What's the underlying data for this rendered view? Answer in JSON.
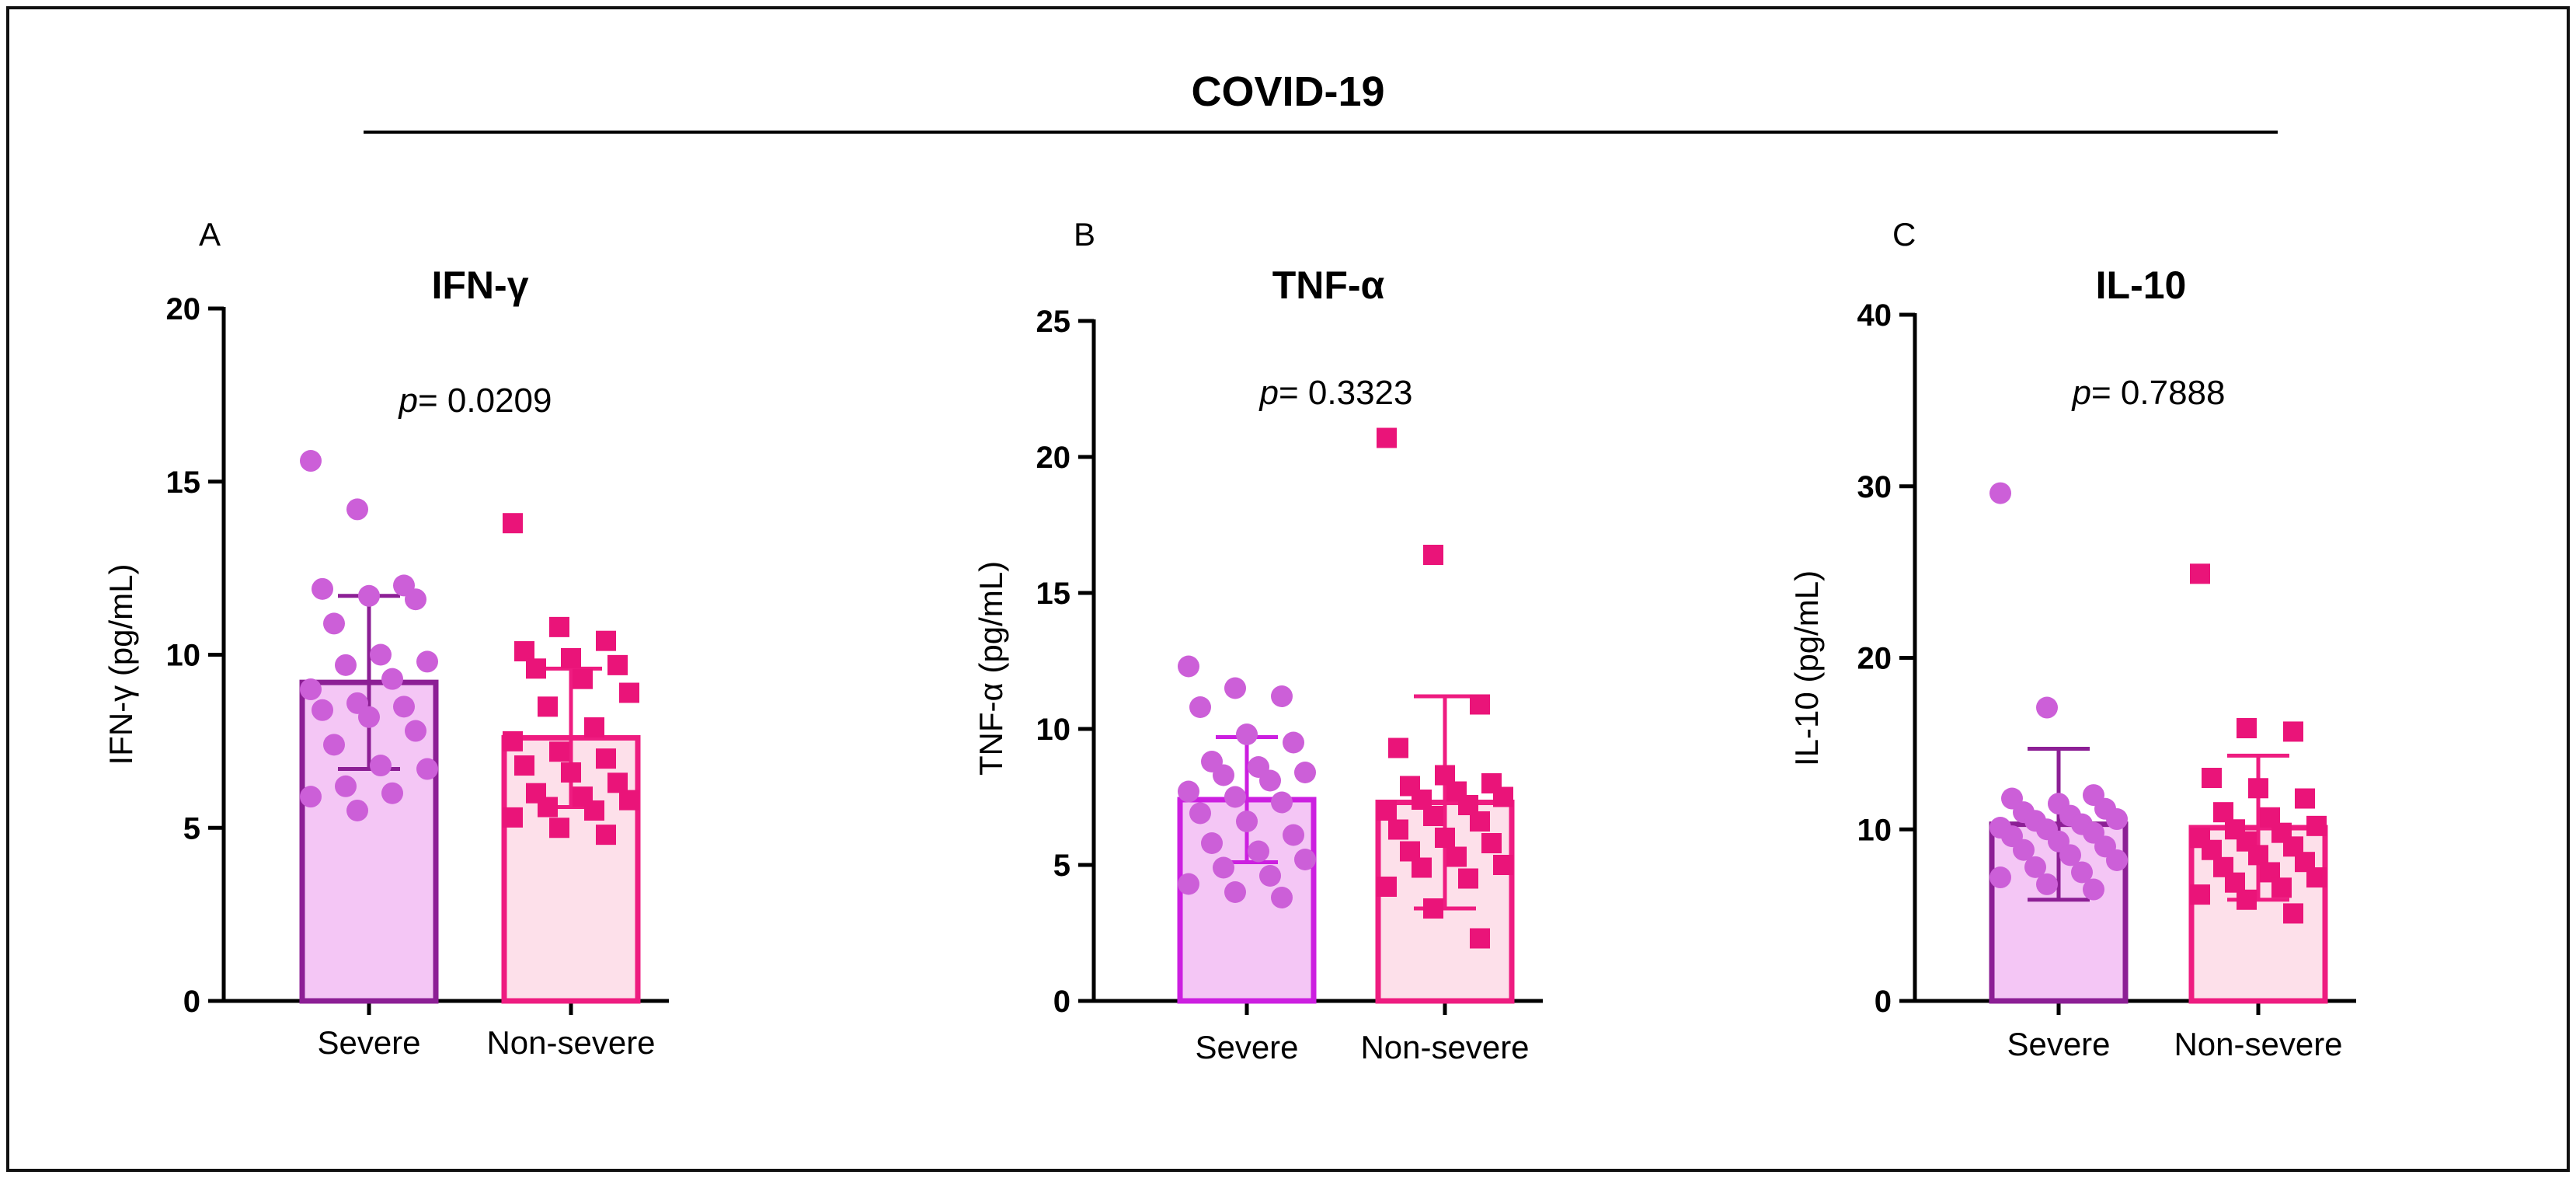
{
  "figure_title": "COVID-19",
  "colors": {
    "severe_fill": "#f4c6f5",
    "severe_stroke_dark": "#8c1f95",
    "severe_stroke_bright": "#cc1fe0",
    "severe_point": "#cc5fd8",
    "nonsevere_fill": "#fde0ea",
    "nonsevere_stroke": "#ee1c80",
    "nonsevere_point": "#ea1479",
    "text": "#000000"
  },
  "chart_data": [
    {
      "type": "bar",
      "panel_label": "A",
      "title": "IFN-γ",
      "xlabel": "",
      "ylabel": "IFN-γ (pg/mL)",
      "ylim": [
        0,
        20
      ],
      "yticks": [
        0,
        5,
        10,
        15,
        20
      ],
      "ytick_labels": [
        "0",
        "5",
        "10",
        "15",
        "20"
      ],
      "categories": [
        "Severe",
        "Non-severe"
      ],
      "values": [
        9.2,
        7.6
      ],
      "sd": [
        2.5,
        2.0
      ],
      "p_prefix": "p",
      "p_value": "= 0.0209",
      "points": [
        [
          15.6,
          14.2,
          12.0,
          11.9,
          11.7,
          11.6,
          10.9,
          10.0,
          9.8,
          9.7,
          9.3,
          9.0,
          8.6,
          8.5,
          8.4,
          8.2,
          7.8,
          7.4,
          6.8,
          6.7,
          6.2,
          6.0,
          5.9,
          5.5
        ],
        [
          13.8,
          10.8,
          10.4,
          10.1,
          9.9,
          9.7,
          9.6,
          9.3,
          8.9,
          8.5,
          7.9,
          7.5,
          7.2,
          7.0,
          6.8,
          6.6,
          6.3,
          6.0,
          5.9,
          5.8,
          5.6,
          5.5,
          5.3,
          5.0,
          4.8
        ]
      ]
    },
    {
      "type": "bar",
      "panel_label": "B",
      "title": "TNF-α",
      "xlabel": "",
      "ylabel": "TNF-α (pg/mL)",
      "ylim": [
        0,
        25
      ],
      "yticks": [
        0,
        5,
        10,
        15,
        20,
        25
      ],
      "ytick_labels": [
        "0",
        "5",
        "10",
        "15",
        "20",
        "25"
      ],
      "categories": [
        "Severe",
        "Non-severe"
      ],
      "values": [
        7.4,
        7.3
      ],
      "sd": [
        2.3,
        3.9
      ],
      "p_prefix": "p",
      "p_value": "= 0.3323",
      "points": [
        [
          12.3,
          11.5,
          11.2,
          10.8,
          9.8,
          9.5,
          8.8,
          8.6,
          8.4,
          8.3,
          8.1,
          7.7,
          7.5,
          7.3,
          6.9,
          6.6,
          6.1,
          5.8,
          5.5,
          5.2,
          4.9,
          4.6,
          4.3,
          4.0,
          3.8
        ],
        [
          20.7,
          16.4,
          10.9,
          9.3,
          8.3,
          8.0,
          7.9,
          7.7,
          7.5,
          7.4,
          7.2,
          7.0,
          6.8,
          6.6,
          6.3,
          6.0,
          5.8,
          5.5,
          5.3,
          5.0,
          4.9,
          4.5,
          4.2,
          3.4,
          2.3
        ]
      ]
    },
    {
      "type": "bar",
      "panel_label": "C",
      "title": "IL-10",
      "xlabel": "",
      "ylabel": "IL-10 (pg/mL)",
      "ylim": [
        0,
        40
      ],
      "yticks": [
        0,
        10,
        20,
        30,
        40
      ],
      "ytick_labels": [
        "0",
        "10",
        "20",
        "30",
        "40"
      ],
      "categories": [
        "Severe",
        "Non-severe"
      ],
      "values": [
        10.3,
        10.1
      ],
      "sd": [
        4.4,
        4.2
      ],
      "p_prefix": "p",
      "p_value": "= 0.7888",
      "points": [
        [
          29.6,
          17.1,
          12.0,
          11.8,
          11.5,
          11.2,
          11.0,
          10.8,
          10.6,
          10.5,
          10.3,
          10.1,
          10.0,
          9.8,
          9.6,
          9.3,
          9.0,
          8.8,
          8.5,
          8.2,
          7.8,
          7.5,
          7.2,
          6.8,
          6.5
        ],
        [
          24.9,
          15.9,
          15.7,
          13.0,
          12.4,
          11.8,
          11.0,
          10.7,
          10.2,
          10.0,
          9.8,
          9.5,
          9.3,
          9.0,
          8.8,
          8.5,
          8.1,
          7.8,
          7.5,
          7.2,
          6.9,
          6.6,
          6.2,
          5.9,
          5.1
        ]
      ]
    }
  ]
}
